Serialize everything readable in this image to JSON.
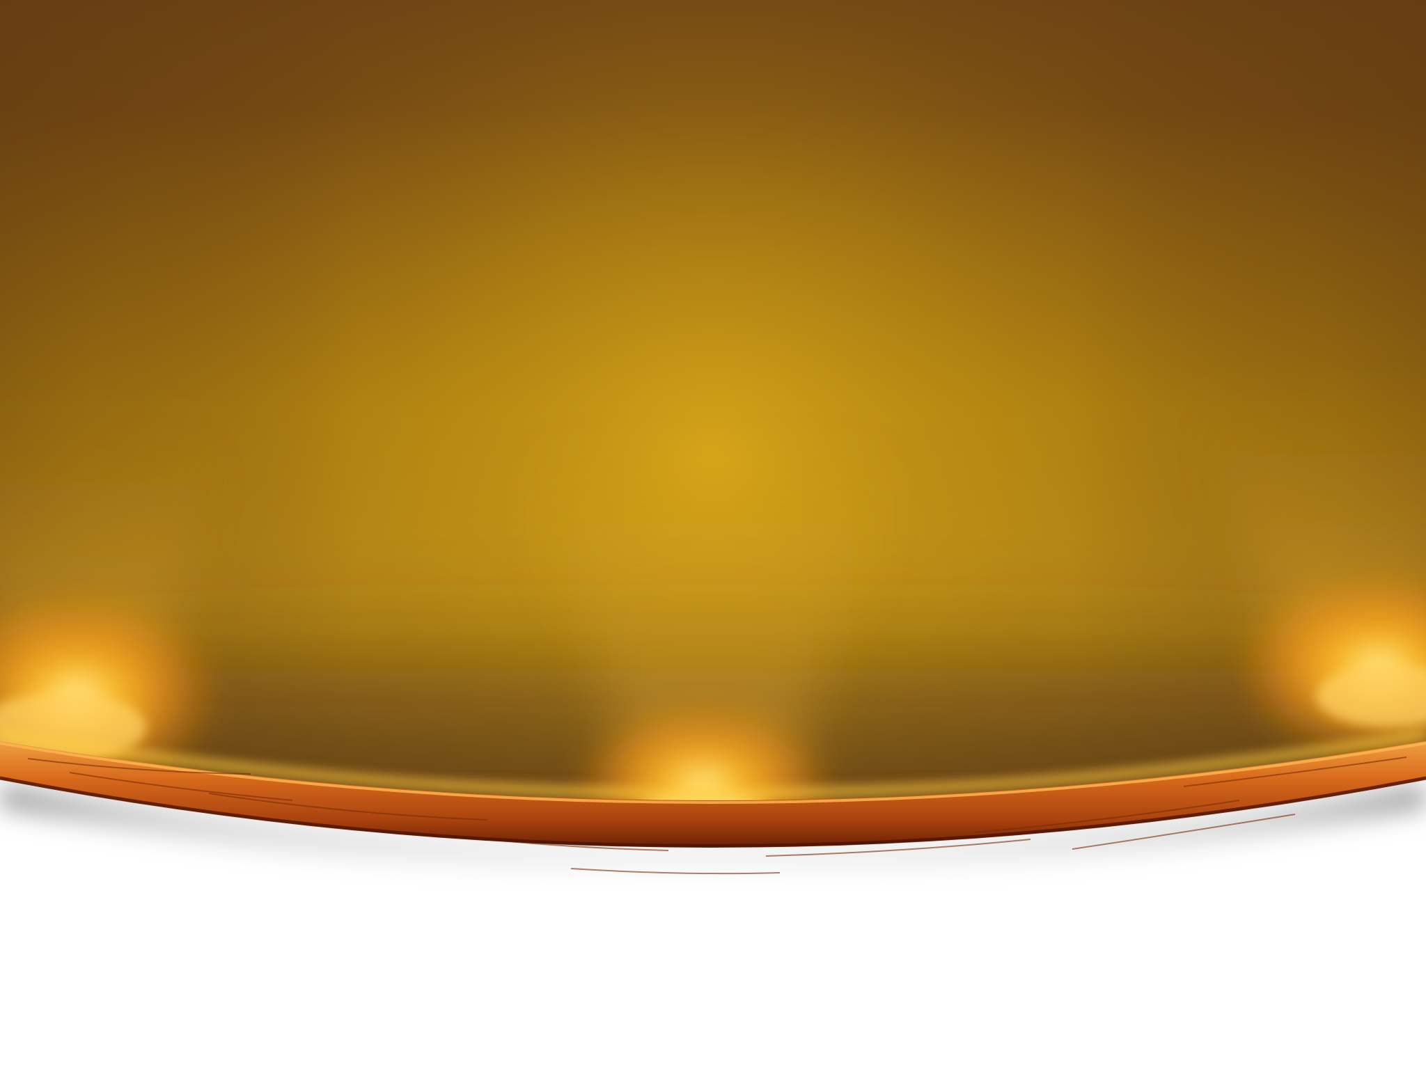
{
  "scene": {
    "description_visible_text": "",
    "colors": {
      "backdrop_top": "#6e4414",
      "backdrop_mid": "#a8780f",
      "backdrop_center": "#d4a418",
      "glow": "#ffb21a",
      "glow_core": "#fff0a0",
      "stage_rim_light": "#e07a22",
      "stage_rim_dark": "#7a2a08",
      "page_background": "#ffffff"
    },
    "spotlights_count": 3
  }
}
